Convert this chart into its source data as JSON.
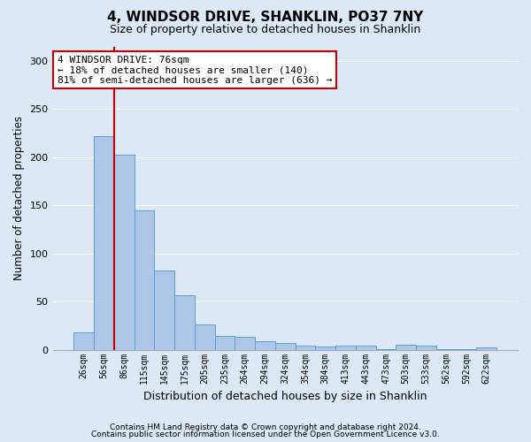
{
  "title": "4, WINDSOR DRIVE, SHANKLIN, PO37 7NY",
  "subtitle": "Size of property relative to detached houses in Shanklin",
  "xlabel": "Distribution of detached houses by size in Shanklin",
  "ylabel": "Number of detached properties",
  "categories": [
    "26sqm",
    "56sqm",
    "86sqm",
    "115sqm",
    "145sqm",
    "175sqm",
    "205sqm",
    "235sqm",
    "264sqm",
    "294sqm",
    "324sqm",
    "354sqm",
    "384sqm",
    "413sqm",
    "443sqm",
    "473sqm",
    "503sqm",
    "533sqm",
    "562sqm",
    "592sqm",
    "622sqm"
  ],
  "values": [
    18,
    222,
    203,
    145,
    82,
    57,
    26,
    14,
    13,
    9,
    7,
    4,
    3,
    4,
    4,
    1,
    5,
    4,
    1,
    1,
    2
  ],
  "bar_color": "#aec6e8",
  "bar_edgecolor": "#5a9fd4",
  "highlight_line_color": "#cc0000",
  "annotation_text": "4 WINDSOR DRIVE: 76sqm\n← 18% of detached houses are smaller (140)\n81% of semi-detached houses are larger (636) →",
  "annotation_box_color": "#ffffff",
  "annotation_box_edgecolor": "#cc0000",
  "footer1": "Contains HM Land Registry data © Crown copyright and database right 2024.",
  "footer2": "Contains public sector information licensed under the Open Government Licence v3.0.",
  "ylim": [
    0,
    315
  ],
  "background_color": "#dce8f5",
  "plot_background_color": "#dce8f5",
  "grid_color": "#ffffff",
  "title_fontsize": 11,
  "subtitle_fontsize": 9,
  "tick_fontsize": 7,
  "ylabel_fontsize": 8.5,
  "xlabel_fontsize": 9,
  "footer_fontsize": 6.5,
  "annotation_fontsize": 8
}
